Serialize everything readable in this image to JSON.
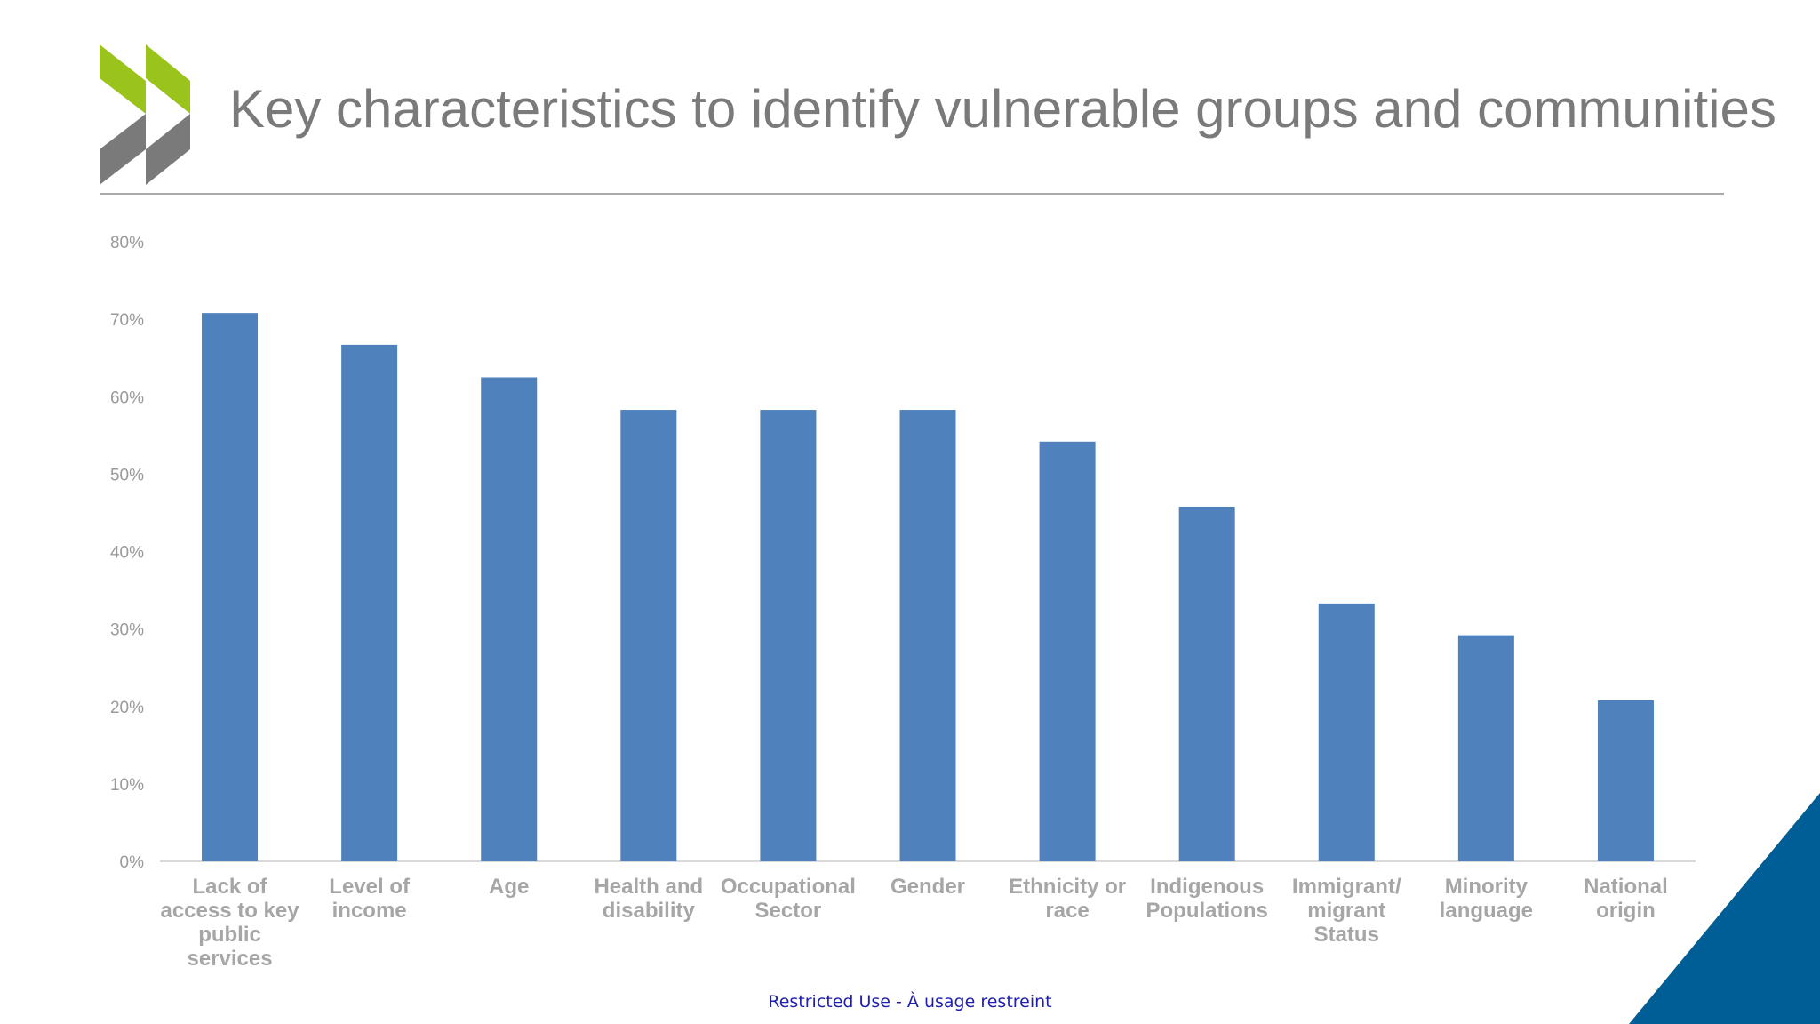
{
  "slide": {
    "title": "Key characteristics to identify vulnerable groups and communities",
    "footer": "Restricted Use - À usage restreint"
  },
  "colors": {
    "bar": "#4f81bd",
    "title": "#7a7a7a",
    "logo_green": "#9ac31c",
    "logo_gray": "#7a7a7a",
    "corner_blue": "#005e96"
  },
  "chart_data": {
    "type": "bar",
    "title": "",
    "xlabel": "",
    "ylabel": "",
    "ylim": [
      0,
      80
    ],
    "y_tick_labels": [
      "0%",
      "10%",
      "20%",
      "30%",
      "40%",
      "50%",
      "60%",
      "70%",
      "80%"
    ],
    "categories": [
      "Lack of access to key public services",
      "Level of income",
      "Age",
      "Health and disability",
      "Occupational Sector",
      "Gender",
      "Ethnicity or race",
      "Indigenous Populations",
      "Immigrant/ migrant Status",
      "Minority language",
      "National origin"
    ],
    "category_lines": [
      [
        "Lack of",
        "access to key",
        "public",
        "services"
      ],
      [
        "Level of",
        "income"
      ],
      [
        "Age"
      ],
      [
        "Health and",
        "disability"
      ],
      [
        "Occupational",
        "Sector"
      ],
      [
        "Gender"
      ],
      [
        "Ethnicity or",
        "race"
      ],
      [
        "Indigenous",
        "Populations"
      ],
      [
        "Immigrant/",
        "migrant",
        "Status"
      ],
      [
        "Minority",
        "language"
      ],
      [
        "National",
        "origin"
      ]
    ],
    "values": [
      70.8,
      66.7,
      62.5,
      58.3,
      58.3,
      58.3,
      54.2,
      45.8,
      33.3,
      29.2,
      20.8
    ],
    "grid": false,
    "legend": "none"
  }
}
